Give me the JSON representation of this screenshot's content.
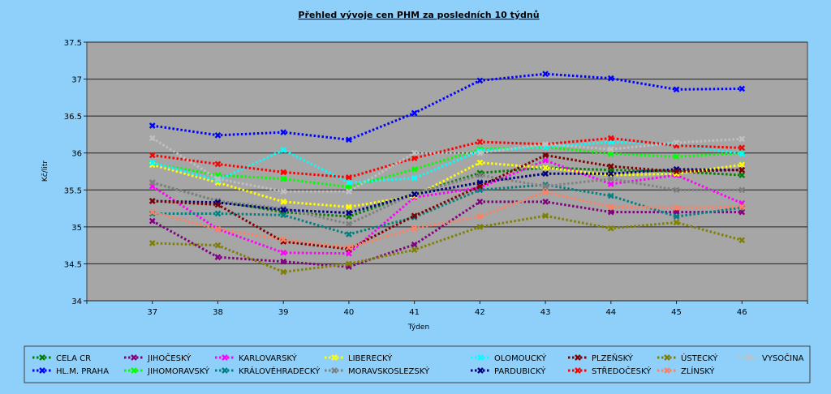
{
  "chart_data": {
    "type": "line",
    "title": "Přehled vývoje cen PHM za posledních 10 týdnů",
    "xlabel": "Týden",
    "ylabel": "Kč/litr",
    "ylim": [
      34,
      37.5
    ],
    "yticks": [
      "34",
      "34.5",
      "35",
      "35.5",
      "36",
      "36.5",
      "37",
      "37.5"
    ],
    "categories": [
      "37",
      "38",
      "39",
      "40",
      "41",
      "42",
      "43",
      "44",
      "45",
      "46"
    ],
    "grid": true,
    "legend_position": "bottom",
    "series": [
      {
        "name": "CELA CR",
        "color": "#008000",
        "values": [
          35.6,
          35.35,
          35.2,
          35.14,
          35.45,
          35.73,
          35.8,
          35.77,
          35.75,
          35.7
        ]
      },
      {
        "name": "HL.M. PRAHA",
        "color": "#0000ff",
        "values": [
          36.37,
          36.24,
          36.28,
          36.18,
          36.54,
          36.98,
          37.07,
          37.01,
          36.86,
          36.87
        ]
      },
      {
        "name": "JIHOČESKÝ",
        "color": "#800080",
        "values": [
          35.08,
          34.59,
          34.53,
          34.46,
          34.76,
          35.34,
          35.34,
          35.2,
          35.2,
          35.2
        ]
      },
      {
        "name": "JIHOMORAVSKÝ",
        "color": "#00ff00",
        "values": [
          35.86,
          35.7,
          35.65,
          35.54,
          35.78,
          36.05,
          36.08,
          35.99,
          35.95,
          36.0
        ]
      },
      {
        "name": "KARLOVARSKÝ",
        "color": "#ff00ff",
        "values": [
          35.55,
          34.97,
          34.65,
          34.64,
          35.4,
          35.53,
          35.9,
          35.58,
          35.7,
          35.32
        ]
      },
      {
        "name": "KRÁLOVÉHRADECKÝ",
        "color": "#008080",
        "values": [
          35.18,
          35.18,
          35.16,
          34.9,
          35.13,
          35.5,
          35.57,
          35.42,
          35.14,
          35.26
        ]
      },
      {
        "name": "LIBERECKÝ",
        "color": "#ffff00",
        "values": [
          35.84,
          35.6,
          35.34,
          35.27,
          35.42,
          35.87,
          35.8,
          35.7,
          35.72,
          35.84
        ]
      },
      {
        "name": "MORAVSKOSLEZSKÝ",
        "color": "#808080",
        "values": [
          35.6,
          35.35,
          35.25,
          35.04,
          35.45,
          35.7,
          35.55,
          35.65,
          35.5,
          35.5
        ]
      },
      {
        "name": "OLOMOUCKÝ",
        "color": "#00ffff",
        "values": [
          35.87,
          35.63,
          36.04,
          35.6,
          35.66,
          36.03,
          36.08,
          36.15,
          36.12,
          35.99
        ]
      },
      {
        "name": "PARDUBICKÝ",
        "color": "#000080",
        "values": [
          35.35,
          35.33,
          35.23,
          35.19,
          35.44,
          35.6,
          35.72,
          35.72,
          35.78,
          35.77
        ]
      },
      {
        "name": "PLZEŇSKÝ",
        "color": "#800000",
        "values": [
          35.35,
          35.3,
          34.8,
          34.7,
          35.15,
          35.55,
          35.97,
          35.82,
          35.75,
          35.77
        ]
      },
      {
        "name": "STŘEDOČESKÝ",
        "color": "#ff0000",
        "values": [
          35.97,
          35.85,
          35.74,
          35.67,
          35.93,
          36.15,
          36.12,
          36.2,
          36.1,
          36.07
        ]
      },
      {
        "name": "ÚSTECKÝ",
        "color": "#808000",
        "values": [
          34.78,
          34.75,
          34.39,
          34.5,
          34.69,
          35.0,
          35.15,
          34.98,
          35.06,
          34.82
        ]
      },
      {
        "name": "ZLÍNSKÝ",
        "color": "#ff8060",
        "values": [
          35.2,
          34.97,
          34.83,
          34.72,
          34.98,
          35.14,
          35.47,
          35.27,
          35.26,
          35.27
        ]
      },
      {
        "name": "VYSOČINA",
        "color": "#c0c0c0",
        "values": [
          36.2,
          35.65,
          35.48,
          35.48,
          36.0,
          36.0,
          36.12,
          36.05,
          36.14,
          36.19
        ]
      }
    ]
  }
}
